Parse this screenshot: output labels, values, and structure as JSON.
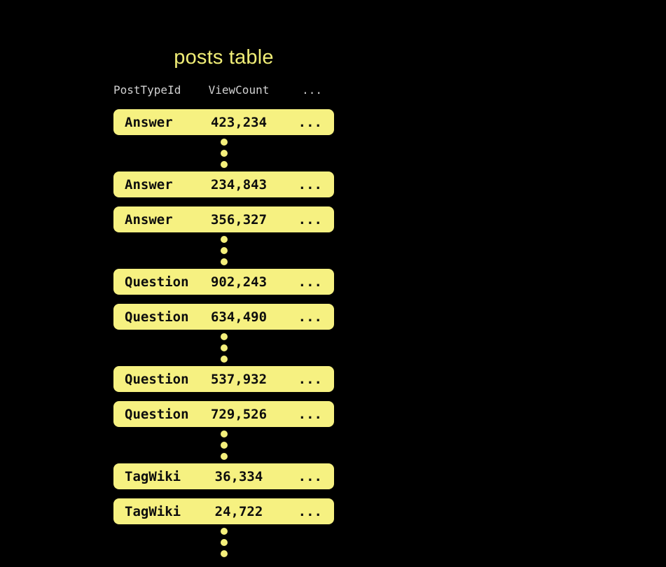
{
  "title": "posts table",
  "colors": {
    "background": "#000000",
    "row_background": "#f6f181",
    "row_text": "#0d0d0d",
    "title_text": "#f0ed76",
    "header_text": "#d2d2d2",
    "dot": "#f4ef7b"
  },
  "table": {
    "columns": [
      {
        "label": "PostTypeId"
      },
      {
        "label": "ViewCount"
      },
      {
        "label": "..."
      }
    ],
    "sequence": [
      {
        "kind": "row",
        "cells": [
          "Answer",
          "423,234",
          "..."
        ]
      },
      {
        "kind": "ellipsis"
      },
      {
        "kind": "row",
        "cells": [
          "Answer",
          "234,843",
          "..."
        ]
      },
      {
        "kind": "row",
        "cells": [
          "Answer",
          "356,327",
          "..."
        ]
      },
      {
        "kind": "ellipsis"
      },
      {
        "kind": "row",
        "cells": [
          "Question",
          "902,243",
          "..."
        ]
      },
      {
        "kind": "row",
        "cells": [
          "Question",
          "634,490",
          "..."
        ]
      },
      {
        "kind": "ellipsis"
      },
      {
        "kind": "row",
        "cells": [
          "Question",
          "537,932",
          "..."
        ]
      },
      {
        "kind": "row",
        "cells": [
          "Question",
          "729,526",
          "..."
        ]
      },
      {
        "kind": "ellipsis"
      },
      {
        "kind": "row",
        "cells": [
          "TagWiki",
          "36,334",
          "..."
        ]
      },
      {
        "kind": "row",
        "cells": [
          "TagWiki",
          "24,722",
          "..."
        ]
      },
      {
        "kind": "ellipsis"
      }
    ]
  }
}
